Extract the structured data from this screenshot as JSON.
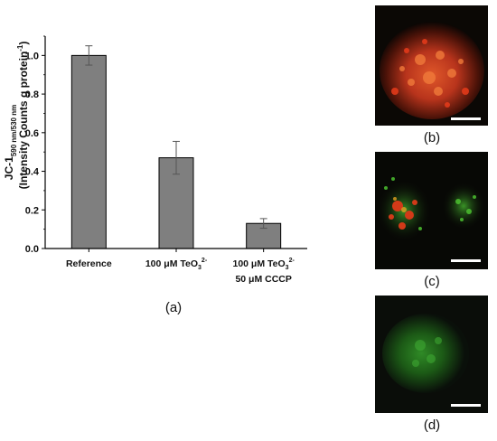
{
  "chart_data": {
    "type": "bar",
    "categories": [
      "Reference",
      "100 μM TeO3 2-",
      "100 μM TeO3 2- 50 μM CCCP"
    ],
    "category_labels": [
      {
        "line1": "Reference",
        "line2": ""
      },
      {
        "line1": "100 μM TeO",
        "sub": "3",
        "sup": "2-",
        "line2": ""
      },
      {
        "line1": "100 μM TeO",
        "sub": "3",
        "sup": "2-",
        "line2": "50 μM CCCP"
      }
    ],
    "values": [
      1.0,
      0.47,
      0.13
    ],
    "errors": [
      0.05,
      0.085,
      0.025
    ],
    "ylim": [
      0,
      1.1
    ],
    "yticks": [
      "0.0",
      "0.2",
      "0.4",
      "0.6",
      "0.8",
      "1.0"
    ],
    "ylabel": {
      "main": "JC-1",
      "sub": "590 nm/530 nm",
      "line2": "(Intensity Counts g protein",
      "sup": "-1",
      "close": ")"
    },
    "xlabel": "",
    "title": "",
    "bar_color": "#7f7f7f",
    "panel_label": "(a)"
  },
  "micrographs": [
    {
      "label": "(b)",
      "stain": "red-orange"
    },
    {
      "label": "(c)",
      "stain": "red-green"
    },
    {
      "label": "(d)",
      "stain": "green"
    }
  ]
}
